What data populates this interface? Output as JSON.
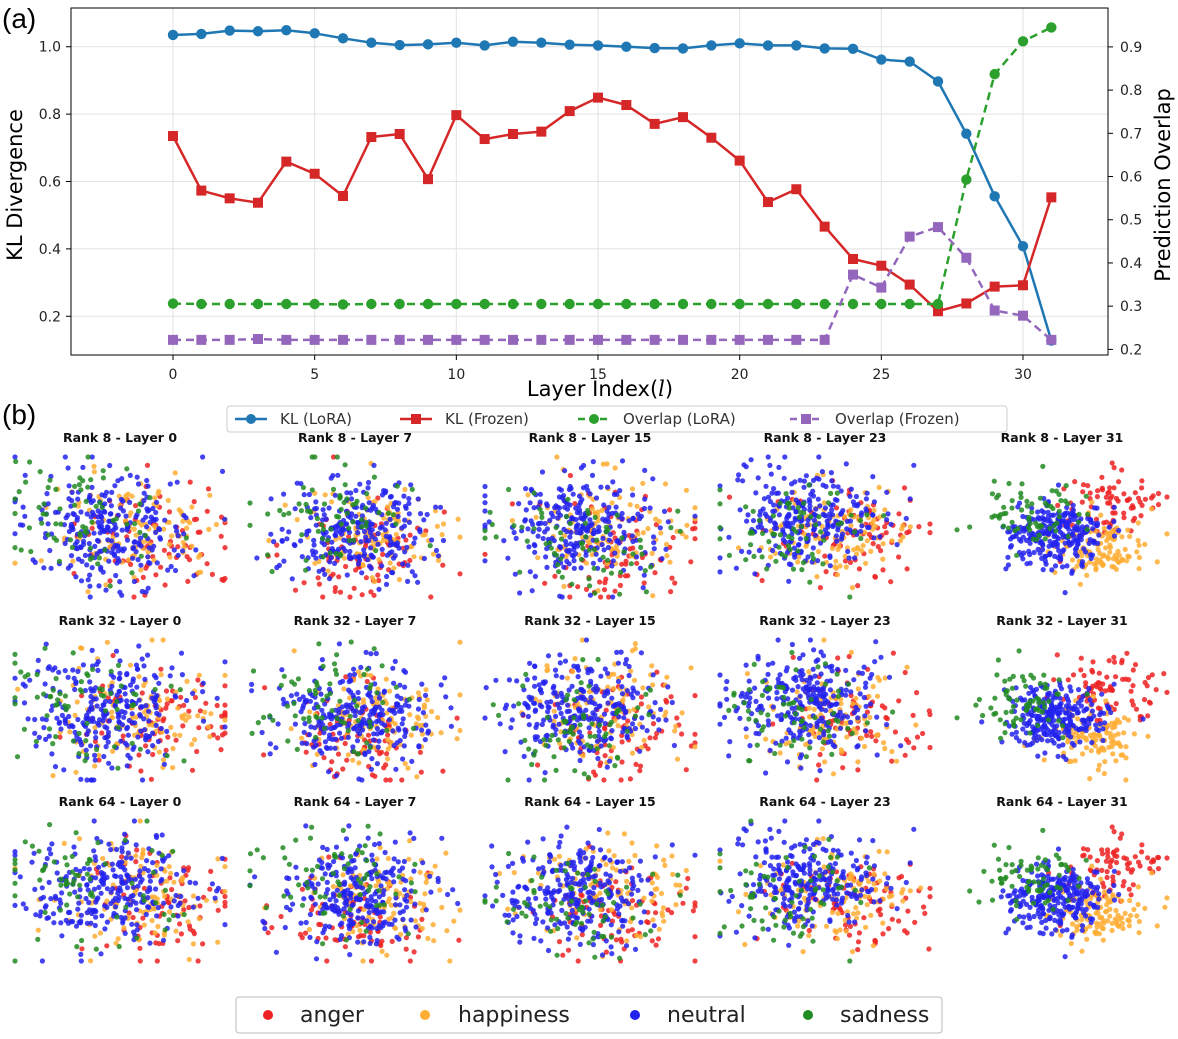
{
  "panel_labels": {
    "a": "(a)",
    "b": "(b)"
  },
  "colors": {
    "kl_lora": "#1f77b4",
    "kl_frozen": "#d62728",
    "overlap_lora": "#2ca02c",
    "overlap_frozen": "#9467bd",
    "anger": "#ee2222",
    "happiness": "#ffad33",
    "neutral": "#2222ee",
    "sadness": "#228b22"
  },
  "chart_data": [
    {
      "type": "line",
      "title": "",
      "xlabel": "Layer Index(",
      "xlabel_italic": "l",
      "xlabel_close": ")",
      "ylabel": "KL Divergence",
      "y2label": "Prediction Overlap",
      "xlim": [
        -3.6,
        33
      ],
      "ylim": [
        0.085,
        1.115
      ],
      "y2lim": [
        0.187,
        0.99
      ],
      "x_ticks": [
        0,
        5,
        10,
        15,
        20,
        25,
        30
      ],
      "y_ticks": [
        0.2,
        0.4,
        0.6,
        0.8,
        1.0
      ],
      "y_tick_labels": [
        "0.2",
        "0.4",
        "0.6",
        "0.8",
        "1.0"
      ],
      "y2_ticks": [
        0.2,
        0.3,
        0.4,
        0.5,
        0.6,
        0.7,
        0.8,
        0.9
      ],
      "y2_tick_labels": [
        "0.2",
        "0.3",
        "0.4",
        "0.5",
        "0.6",
        "0.7",
        "0.8",
        "0.9"
      ],
      "grid": true,
      "legend_position": "bottom-center",
      "x": [
        0,
        1,
        2,
        3,
        4,
        5,
        6,
        7,
        8,
        9,
        10,
        11,
        12,
        13,
        14,
        15,
        16,
        17,
        18,
        19,
        20,
        21,
        22,
        23,
        24,
        25,
        26,
        27,
        28,
        29,
        30,
        31
      ],
      "series": [
        {
          "name": "KL (LoRA)",
          "axis": "left",
          "marker": "circle",
          "dash": false,
          "values": [
            1.035,
            1.038,
            1.048,
            1.046,
            1.049,
            1.04,
            1.025,
            1.012,
            1.005,
            1.007,
            1.012,
            1.004,
            1.015,
            1.012,
            1.006,
            1.004,
            1.0,
            0.996,
            0.995,
            1.004,
            1.01,
            1.004,
            1.004,
            0.995,
            0.994,
            0.962,
            0.956,
            0.897,
            0.742,
            0.556,
            0.408,
            0.128
          ]
        },
        {
          "name": "KL (Frozen)",
          "axis": "left",
          "marker": "square",
          "dash": false,
          "values": [
            0.735,
            0.573,
            0.55,
            0.537,
            0.659,
            0.623,
            0.557,
            0.732,
            0.741,
            0.607,
            0.797,
            0.726,
            0.741,
            0.748,
            0.809,
            0.849,
            0.827,
            0.771,
            0.791,
            0.73,
            0.662,
            0.539,
            0.577,
            0.466,
            0.37,
            0.35,
            0.294,
            0.215,
            0.238,
            0.288,
            0.292,
            0.553
          ]
        },
        {
          "name": "Overlap (LoRA)",
          "axis": "right",
          "marker": "circle",
          "dash": true,
          "values": [
            0.306,
            0.305,
            0.305,
            0.305,
            0.305,
            0.305,
            0.304,
            0.305,
            0.305,
            0.305,
            0.305,
            0.305,
            0.305,
            0.305,
            0.305,
            0.305,
            0.305,
            0.305,
            0.305,
            0.305,
            0.305,
            0.305,
            0.305,
            0.305,
            0.305,
            0.305,
            0.305,
            0.305,
            0.593,
            0.837,
            0.913,
            0.945
          ]
        },
        {
          "name": "Overlap (Frozen)",
          "axis": "right",
          "marker": "square",
          "dash": true,
          "values": [
            0.222,
            0.222,
            0.222,
            0.224,
            0.222,
            0.222,
            0.222,
            0.222,
            0.222,
            0.222,
            0.222,
            0.222,
            0.222,
            0.222,
            0.222,
            0.222,
            0.222,
            0.222,
            0.222,
            0.222,
            0.222,
            0.222,
            0.222,
            0.222,
            0.373,
            0.343,
            0.461,
            0.483,
            0.412,
            0.29,
            0.278,
            0.222
          ]
        }
      ]
    },
    {
      "type": "scatter",
      "title_grid": [
        [
          "Rank 8 - Layer 0",
          "Rank 8 - Layer 7",
          "Rank 8 - Layer 15",
          "Rank 8 - Layer 23",
          "Rank 8 - Layer 31"
        ],
        [
          "Rank 32 - Layer 0",
          "Rank 32 - Layer 7",
          "Rank 32 - Layer 15",
          "Rank 32 - Layer 23",
          "Rank 32 - Layer 31"
        ],
        [
          "Rank 64 - Layer 0",
          "Rank 64 - Layer 7",
          "Rank 64 - Layer 15",
          "Rank 64 - Layer 23",
          "Rank 64 - Layer 31"
        ]
      ],
      "classes": [
        "anger",
        "happiness",
        "neutral",
        "sadness"
      ],
      "legend_position": "bottom-center",
      "note": "t-SNE projections; individual point coordinates are not readable from the image and are rendered as approximate clouds"
    }
  ]
}
